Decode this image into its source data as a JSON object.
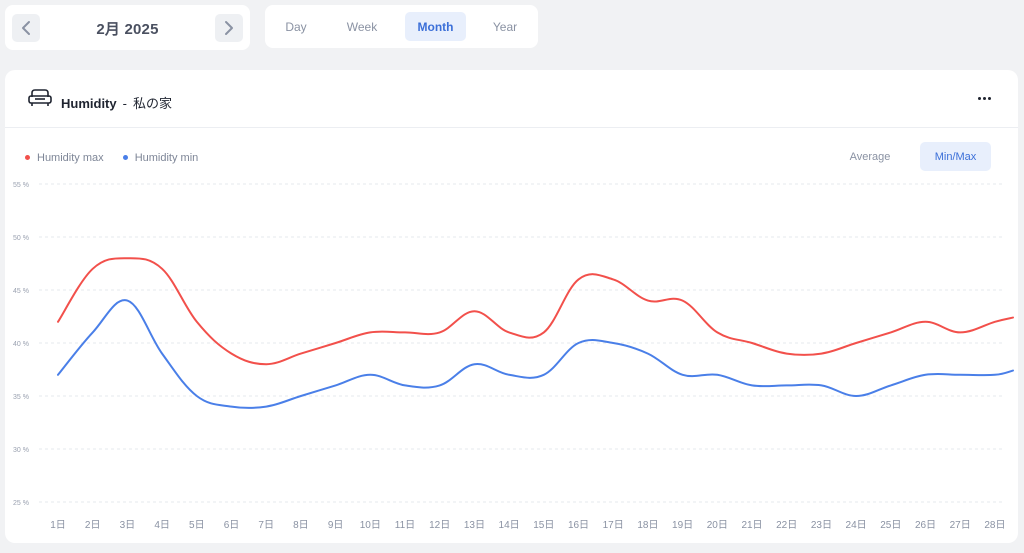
{
  "date_nav": {
    "label": "2月 2025",
    "prev_icon": "chevron-left-icon",
    "next_icon": "chevron-right-icon"
  },
  "period_tabs": [
    {
      "label": "Day",
      "active": false
    },
    {
      "label": "Week",
      "active": false
    },
    {
      "label": "Month",
      "active": true
    },
    {
      "label": "Year",
      "active": false
    }
  ],
  "card": {
    "room_icon": "sofa-icon",
    "metric": "Humidity",
    "separator": "-",
    "location": "私の家",
    "more_icon": "more-icon"
  },
  "legend": [
    {
      "label": "Humidity max",
      "color": "#f2504b"
    },
    {
      "label": "Humidity min",
      "color": "#4a7fe8"
    }
  ],
  "mode_toggle": {
    "average": "Average",
    "minmax": "Min/Max",
    "active": "minmax"
  },
  "colors": {
    "accent": "#3b6fd8",
    "accent_bg": "#e8effc",
    "max": "#f2504b",
    "min": "#4a7fe8"
  },
  "chart_data": {
    "type": "line",
    "categories": [
      "1日",
      "2日",
      "3日",
      "4日",
      "5日",
      "6日",
      "7日",
      "8日",
      "9日",
      "10日",
      "11日",
      "12日",
      "13日",
      "14日",
      "15日",
      "16日",
      "17日",
      "18日",
      "19日",
      "20日",
      "21日",
      "22日",
      "23日",
      "24日",
      "25日",
      "26日",
      "27日",
      "28日"
    ],
    "series": [
      {
        "name": "Humidity max",
        "color": "#f2504b",
        "values": [
          42,
          47,
          48,
          47,
          42,
          39,
          38,
          39,
          40,
          41,
          41,
          41,
          43,
          41,
          41,
          46,
          46,
          44,
          44,
          41,
          40,
          39,
          39,
          40,
          41,
          42,
          41,
          42
        ]
      },
      {
        "name": "Humidity min",
        "color": "#4a7fe8",
        "values": [
          37,
          41,
          44,
          39,
          35,
          34,
          34,
          35,
          36,
          37,
          36,
          36,
          38,
          37,
          37,
          40,
          40,
          39,
          37,
          37,
          36,
          36,
          36,
          35,
          36,
          37,
          37,
          37
        ]
      }
    ],
    "extra_tail": {
      "max": 42.4,
      "min": 37.4
    },
    "ylim": [
      25,
      55
    ],
    "yticks": [
      55,
      50,
      45,
      40,
      35,
      30,
      25
    ],
    "ytick_labels": [
      "55 %",
      "50 %",
      "45 %",
      "40 %",
      "35 %",
      "30 %",
      "25 %"
    ],
    "grid": true
  }
}
